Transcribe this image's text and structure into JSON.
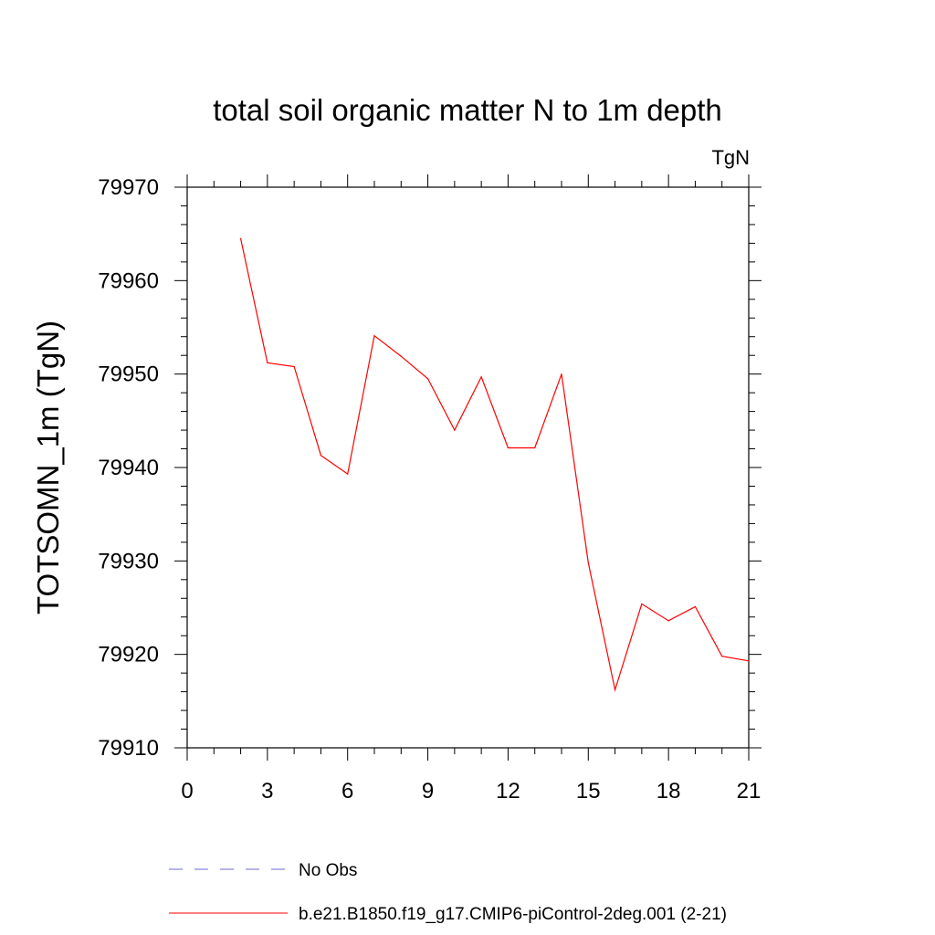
{
  "chart_data": {
    "type": "line",
    "title": "total soil organic matter N to 1m depth",
    "units": "TgN",
    "ylabel": "TOTSOMN_1m  (TgN)",
    "xlabel": "",
    "xlim": [
      0,
      21
    ],
    "ylim": [
      79910,
      79970
    ],
    "xticks": [
      0,
      3,
      6,
      9,
      12,
      15,
      18,
      21
    ],
    "yticks": [
      79910,
      79920,
      79930,
      79940,
      79950,
      79960,
      79970
    ],
    "xtick_labels": [
      "0",
      "3",
      "6",
      "9",
      "12",
      "15",
      "18",
      "21"
    ],
    "ytick_labels": [
      "79910",
      "79920",
      "79930",
      "79940",
      "79950",
      "79960",
      "79970"
    ],
    "grid": false,
    "series": [
      {
        "name": "b.e21.B1850.f19_g17.CMIP6-piControl-2deg.001 (2-21)",
        "color": "#ff0000",
        "style": "solid",
        "x": [
          2,
          3,
          4,
          5,
          6,
          7,
          8,
          9,
          10,
          11,
          12,
          13,
          14,
          15,
          16,
          17,
          18,
          19,
          20,
          21
        ],
        "values": [
          79964.5,
          79951.2,
          79950.8,
          79941.3,
          79939.3,
          79954.1,
          79951.9,
          79949.5,
          79944.0,
          79949.7,
          79942.1,
          79942.1,
          79950.0,
          79929.8,
          79916.2,
          79925.4,
          79923.6,
          79925.1,
          79919.8,
          79919.3
        ]
      }
    ],
    "legend": [
      {
        "label": "No Obs",
        "color": "#6a6ad8",
        "style": "dashed"
      },
      {
        "label": "b.e21.B1850.f19_g17.CMIP6-piControl-2deg.001 (2-21)",
        "color": "#ff0000",
        "style": "solid"
      }
    ]
  }
}
